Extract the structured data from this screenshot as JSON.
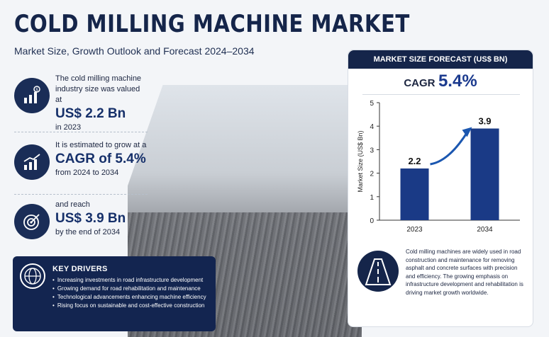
{
  "title": "COLD MILLING MACHINE MARKET",
  "subtitle": "Market Size, Growth Outlook and Forecast 2024–2034",
  "stats": [
    {
      "pre": "The cold milling machine industry size was valued at",
      "big": "US$ 2.2 Bn",
      "post": "in 2023",
      "icon": "dollar-chart-icon"
    },
    {
      "pre": "It is estimated to grow at a",
      "big": "CAGR of 5.4%",
      "post": "from 2024 to 2034",
      "icon": "growth-chart-icon"
    },
    {
      "pre": "and reach",
      "big": "US$ 3.9 Bn",
      "post": "by the end of 2034",
      "icon": "target-icon"
    }
  ],
  "drivers": {
    "title": "KEY DRIVERS",
    "items": [
      "Increasing investments in road infrastructure development",
      "Growing demand for road rehabilitation and maintenance",
      "Technological advancements enhancing machine efficiency",
      "Rising focus on sustainable and cost-effective construction"
    ],
    "icon": "globe-icon"
  },
  "panel": {
    "title": "MARKET SIZE FORECAST (US$ BN)",
    "cagr_label": "CAGR",
    "cagr_value": "5.4%"
  },
  "chart_data": {
    "type": "bar",
    "categories": [
      "2023",
      "2034"
    ],
    "values": [
      2.2,
      3.9
    ],
    "ylabel": "Market Size (US$ Bn)",
    "ylim": [
      0,
      5
    ],
    "yticks": [
      0,
      1,
      2,
      3,
      4,
      5
    ],
    "bar_color": "#1a3a86",
    "grid": false
  },
  "info_text": "Cold milling machines are widely used in road construction and maintenance for removing asphalt and concrete surfaces with precision and efficiency. The growing emphasis on infrastructure development and rehabilitation is driving market growth worldwide.",
  "info_icon": "road-icon",
  "colors": {
    "navy": "#15254a",
    "accent": "#1b3a8e"
  }
}
